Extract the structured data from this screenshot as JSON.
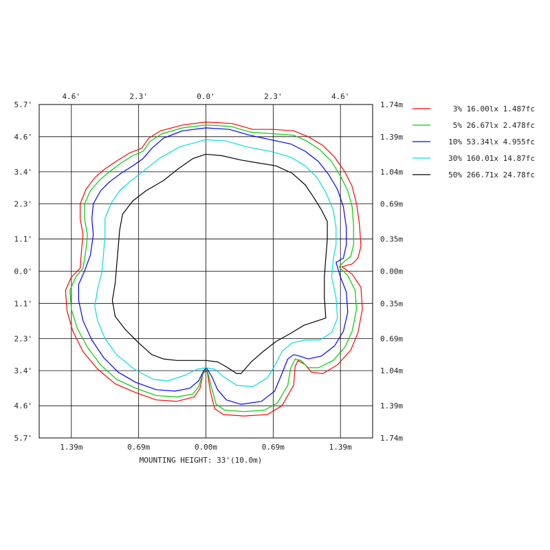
{
  "chart_data": {
    "type": "line",
    "title": "",
    "xlabel": "MOUNTING HEIGHT: 33'(10.0m)",
    "ylabel": "",
    "xlim": [
      -5.7,
      5.7
    ],
    "ylim": [
      -5.7,
      5.7
    ],
    "grid": true,
    "legend_position": "right",
    "top_tick_labels": [
      "4.6'",
      "2.3'",
      "0.0'",
      "2.3'",
      "4.6'"
    ],
    "top_tick_values": [
      -4.6,
      -2.3,
      0.0,
      2.3,
      4.6
    ],
    "bottom_tick_labels": [
      "1.39m",
      "0.69m",
      "0.00m",
      "0.69m",
      "1.39m"
    ],
    "bottom_tick_values": [
      -4.6,
      -2.3,
      0.0,
      2.3,
      4.6
    ],
    "left_tick_labels": [
      "5.7'",
      "4.6'",
      "3.4'",
      "2.3'",
      "1.1'",
      "0.0'",
      "1.1'",
      "2.3'",
      "3.4'",
      "4.6'",
      "5.7'"
    ],
    "right_tick_labels": [
      "1.74m",
      "1.39m",
      "1.04m",
      "0.69m",
      "0.35m",
      "0.00m",
      "0.35m",
      "0.69m",
      "1.04m",
      "1.39m",
      "1.74m"
    ],
    "y_tick_values": [
      5.7,
      4.6,
      3.4,
      2.3,
      1.1,
      0.0,
      -1.1,
      -2.3,
      -3.4,
      -4.6,
      -5.7
    ],
    "series": [
      {
        "name": "3% 16.00lx 1.487fc",
        "color": "#ff0000",
        "points": [
          [
            0,
            5.1
          ],
          [
            0.9,
            5.05
          ],
          [
            1.6,
            4.85
          ],
          [
            2.3,
            4.85
          ],
          [
            3.0,
            4.8
          ],
          [
            3.5,
            4.6
          ],
          [
            4.0,
            4.3
          ],
          [
            4.4,
            3.9
          ],
          [
            4.75,
            3.4
          ],
          [
            5.0,
            2.9
          ],
          [
            5.15,
            2.3
          ],
          [
            5.25,
            1.6
          ],
          [
            5.3,
            0.85
          ],
          [
            5.2,
            0.45
          ],
          [
            5.0,
            0.25
          ],
          [
            4.65,
            0.15
          ],
          [
            5.0,
            -0.1
          ],
          [
            5.3,
            -0.55
          ],
          [
            5.35,
            -1.3
          ],
          [
            5.2,
            -2.1
          ],
          [
            4.95,
            -2.7
          ],
          [
            4.5,
            -3.2
          ],
          [
            4.0,
            -3.5
          ],
          [
            3.6,
            -3.45
          ],
          [
            3.4,
            -3.2
          ],
          [
            3.15,
            -3.05
          ],
          [
            3.05,
            -3.25
          ],
          [
            3.0,
            -3.9
          ],
          [
            2.6,
            -4.6
          ],
          [
            2.1,
            -4.9
          ],
          [
            1.3,
            -4.95
          ],
          [
            0.6,
            -4.9
          ],
          [
            0.3,
            -4.7
          ],
          [
            0.15,
            -4.1
          ],
          [
            0.05,
            -3.45
          ],
          [
            0.0,
            -3.4
          ],
          [
            -0.1,
            -3.5
          ],
          [
            -0.2,
            -4.0
          ],
          [
            -0.4,
            -4.3
          ],
          [
            -1.0,
            -4.45
          ],
          [
            -1.7,
            -4.4
          ],
          [
            -2.4,
            -4.15
          ],
          [
            -3.1,
            -3.85
          ],
          [
            -3.7,
            -3.35
          ],
          [
            -4.2,
            -2.75
          ],
          [
            -4.55,
            -2.05
          ],
          [
            -4.75,
            -1.35
          ],
          [
            -4.8,
            -0.65
          ],
          [
            -4.6,
            -0.2
          ],
          [
            -4.3,
            0.1
          ],
          [
            -4.25,
            0.75
          ],
          [
            -4.2,
            1.25
          ],
          [
            -4.3,
            1.8
          ],
          [
            -4.3,
            2.3
          ],
          [
            -4.1,
            2.8
          ],
          [
            -3.8,
            3.2
          ],
          [
            -3.45,
            3.5
          ],
          [
            -3.0,
            3.8
          ],
          [
            -2.6,
            4.05
          ],
          [
            -2.2,
            4.2
          ],
          [
            -1.95,
            4.55
          ],
          [
            -1.55,
            4.8
          ],
          [
            -0.8,
            5.0
          ],
          [
            0,
            5.1
          ]
        ]
      },
      {
        "name": "5% 26.67lx 2.478fc",
        "color": "#00cc00",
        "points": [
          [
            0,
            5.0
          ],
          [
            0.85,
            4.95
          ],
          [
            1.55,
            4.75
          ],
          [
            2.3,
            4.7
          ],
          [
            3.0,
            4.65
          ],
          [
            3.45,
            4.45
          ],
          [
            3.9,
            4.15
          ],
          [
            4.3,
            3.75
          ],
          [
            4.6,
            3.25
          ],
          [
            4.85,
            2.75
          ],
          [
            5.0,
            2.2
          ],
          [
            5.05,
            1.55
          ],
          [
            5.05,
            0.9
          ],
          [
            4.95,
            0.5
          ],
          [
            4.75,
            0.35
          ],
          [
            4.55,
            0.15
          ],
          [
            4.85,
            -0.15
          ],
          [
            5.1,
            -0.65
          ],
          [
            5.15,
            -1.3
          ],
          [
            5.0,
            -2.05
          ],
          [
            4.75,
            -2.6
          ],
          [
            4.35,
            -3.05
          ],
          [
            3.85,
            -3.3
          ],
          [
            3.5,
            -3.3
          ],
          [
            3.25,
            -3.05
          ],
          [
            3.05,
            -3.0
          ],
          [
            2.9,
            -3.3
          ],
          [
            2.8,
            -3.9
          ],
          [
            2.45,
            -4.5
          ],
          [
            2.0,
            -4.75
          ],
          [
            1.3,
            -4.8
          ],
          [
            0.65,
            -4.75
          ],
          [
            0.35,
            -4.55
          ],
          [
            0.2,
            -4.0
          ],
          [
            0.05,
            -3.4
          ],
          [
            0.0,
            -3.35
          ],
          [
            -0.1,
            -3.5
          ],
          [
            -0.25,
            -3.95
          ],
          [
            -0.45,
            -4.2
          ],
          [
            -1.0,
            -4.3
          ],
          [
            -1.7,
            -4.25
          ],
          [
            -2.4,
            -4.0
          ],
          [
            -3.05,
            -3.7
          ],
          [
            -3.6,
            -3.2
          ],
          [
            -4.05,
            -2.6
          ],
          [
            -4.4,
            -1.95
          ],
          [
            -4.6,
            -1.3
          ],
          [
            -4.65,
            -0.65
          ],
          [
            -4.45,
            -0.2
          ],
          [
            -4.2,
            0.1
          ],
          [
            -4.1,
            0.75
          ],
          [
            -4.05,
            1.25
          ],
          [
            -4.15,
            1.8
          ],
          [
            -4.15,
            2.3
          ],
          [
            -3.95,
            2.75
          ],
          [
            -3.65,
            3.1
          ],
          [
            -3.3,
            3.4
          ],
          [
            -2.9,
            3.7
          ],
          [
            -2.5,
            3.95
          ],
          [
            -2.15,
            4.1
          ],
          [
            -1.9,
            4.45
          ],
          [
            -1.5,
            4.7
          ],
          [
            -0.8,
            4.9
          ],
          [
            0,
            5.0
          ]
        ]
      },
      {
        "name": "10% 53.34lx 4.955fc",
        "color": "#0000ff",
        "points": [
          [
            0,
            4.9
          ],
          [
            0.8,
            4.85
          ],
          [
            1.5,
            4.65
          ],
          [
            2.2,
            4.5
          ],
          [
            2.9,
            4.35
          ],
          [
            3.4,
            4.1
          ],
          [
            3.85,
            3.75
          ],
          [
            4.2,
            3.3
          ],
          [
            4.5,
            2.8
          ],
          [
            4.7,
            2.2
          ],
          [
            4.8,
            1.5
          ],
          [
            4.8,
            0.9
          ],
          [
            4.7,
            0.45
          ],
          [
            4.45,
            0.3
          ],
          [
            4.6,
            -0.2
          ],
          [
            4.8,
            -0.7
          ],
          [
            4.85,
            -1.4
          ],
          [
            4.7,
            -2.05
          ],
          [
            4.4,
            -2.55
          ],
          [
            3.95,
            -2.9
          ],
          [
            3.5,
            -3.0
          ],
          [
            3.2,
            -2.9
          ],
          [
            3.0,
            -2.85
          ],
          [
            2.8,
            -3.0
          ],
          [
            2.6,
            -3.5
          ],
          [
            2.35,
            -4.1
          ],
          [
            1.9,
            -4.45
          ],
          [
            1.2,
            -4.55
          ],
          [
            0.7,
            -4.4
          ],
          [
            0.4,
            -4.05
          ],
          [
            0.2,
            -3.6
          ],
          [
            0.05,
            -3.35
          ],
          [
            0.0,
            -3.3
          ],
          [
            -0.1,
            -3.45
          ],
          [
            -0.25,
            -3.75
          ],
          [
            -0.55,
            -4.0
          ],
          [
            -1.05,
            -4.1
          ],
          [
            -1.7,
            -4.05
          ],
          [
            -2.4,
            -3.8
          ],
          [
            -3.0,
            -3.45
          ],
          [
            -3.5,
            -2.95
          ],
          [
            -3.9,
            -2.35
          ],
          [
            -4.2,
            -1.7
          ],
          [
            -4.35,
            -1.0
          ],
          [
            -4.35,
            -0.45
          ],
          [
            -4.15,
            0.0
          ],
          [
            -3.95,
            0.55
          ],
          [
            -3.85,
            1.25
          ],
          [
            -3.9,
            1.8
          ],
          [
            -3.85,
            2.3
          ],
          [
            -3.6,
            2.75
          ],
          [
            -3.3,
            3.05
          ],
          [
            -2.9,
            3.35
          ],
          [
            -2.5,
            3.6
          ],
          [
            -2.15,
            3.85
          ],
          [
            -1.85,
            4.2
          ],
          [
            -1.45,
            4.55
          ],
          [
            -0.8,
            4.8
          ],
          [
            0,
            4.9
          ]
        ]
      },
      {
        "name": "30% 160.01x 14.87fc",
        "color": "#00dddd",
        "points": [
          [
            0,
            4.5
          ],
          [
            0.7,
            4.45
          ],
          [
            1.4,
            4.25
          ],
          [
            2.2,
            4.1
          ],
          [
            2.9,
            3.9
          ],
          [
            3.4,
            3.6
          ],
          [
            3.8,
            3.2
          ],
          [
            4.1,
            2.7
          ],
          [
            4.35,
            2.1
          ],
          [
            4.45,
            1.5
          ],
          [
            4.45,
            0.9
          ],
          [
            4.35,
            0.4
          ],
          [
            4.3,
            -0.2
          ],
          [
            4.45,
            -0.9
          ],
          [
            4.5,
            -1.6
          ],
          [
            4.3,
            -2.1
          ],
          [
            3.9,
            -2.35
          ],
          [
            3.4,
            -2.35
          ],
          [
            2.95,
            -2.45
          ],
          [
            2.6,
            -2.75
          ],
          [
            2.4,
            -3.15
          ],
          [
            2.1,
            -3.65
          ],
          [
            1.6,
            -3.95
          ],
          [
            1.05,
            -3.9
          ],
          [
            0.6,
            -3.6
          ],
          [
            0.3,
            -3.35
          ],
          [
            0.0,
            -3.3
          ],
          [
            -0.3,
            -3.35
          ],
          [
            -0.7,
            -3.55
          ],
          [
            -1.3,
            -3.75
          ],
          [
            -1.8,
            -3.7
          ],
          [
            -2.45,
            -3.35
          ],
          [
            -3.05,
            -2.85
          ],
          [
            -3.45,
            -2.3
          ],
          [
            -3.7,
            -1.7
          ],
          [
            -3.8,
            -1.2
          ],
          [
            -3.7,
            -0.6
          ],
          [
            -3.55,
            0.0
          ],
          [
            -3.5,
            0.6
          ],
          [
            -3.45,
            1.2
          ],
          [
            -3.45,
            1.8
          ],
          [
            -3.25,
            2.3
          ],
          [
            -2.95,
            2.75
          ],
          [
            -2.55,
            3.1
          ],
          [
            -2.1,
            3.45
          ],
          [
            -1.6,
            3.85
          ],
          [
            -0.9,
            4.25
          ],
          [
            0,
            4.5
          ]
        ]
      },
      {
        "name": "50% 266.71x 24.78fc",
        "color": "#000000",
        "points": [
          [
            0,
            4.0
          ],
          [
            0.55,
            3.95
          ],
          [
            1.2,
            3.8
          ],
          [
            1.8,
            3.7
          ],
          [
            2.4,
            3.6
          ],
          [
            2.95,
            3.35
          ],
          [
            3.4,
            2.95
          ],
          [
            3.7,
            2.5
          ],
          [
            3.95,
            2.1
          ],
          [
            4.15,
            1.7
          ],
          [
            4.15,
            1.1
          ],
          [
            4.1,
            0.45
          ],
          [
            4.05,
            -0.2
          ],
          [
            4.05,
            -0.9
          ],
          [
            4.1,
            -1.6
          ],
          [
            3.8,
            -1.7
          ],
          [
            3.35,
            -1.85
          ],
          [
            2.85,
            -2.15
          ],
          [
            2.4,
            -2.4
          ],
          [
            1.95,
            -2.75
          ],
          [
            1.55,
            -3.1
          ],
          [
            1.2,
            -3.5
          ],
          [
            1.05,
            -3.5
          ],
          [
            0.75,
            -3.3
          ],
          [
            0.4,
            -3.1
          ],
          [
            0.0,
            -3.05
          ],
          [
            -0.5,
            -3.05
          ],
          [
            -1.0,
            -3.05
          ],
          [
            -1.45,
            -3.0
          ],
          [
            -1.85,
            -2.85
          ],
          [
            -2.3,
            -2.45
          ],
          [
            -2.75,
            -2.0
          ],
          [
            -3.1,
            -1.55
          ],
          [
            -3.2,
            -1.0
          ],
          [
            -3.1,
            -0.4
          ],
          [
            -3.05,
            0.2
          ],
          [
            -3.0,
            0.8
          ],
          [
            -2.95,
            1.4
          ],
          [
            -2.85,
            1.95
          ],
          [
            -2.5,
            2.4
          ],
          [
            -2.05,
            2.75
          ],
          [
            -1.45,
            3.1
          ],
          [
            -0.95,
            3.5
          ],
          [
            -0.45,
            3.85
          ],
          [
            0,
            4.0
          ]
        ]
      }
    ]
  }
}
